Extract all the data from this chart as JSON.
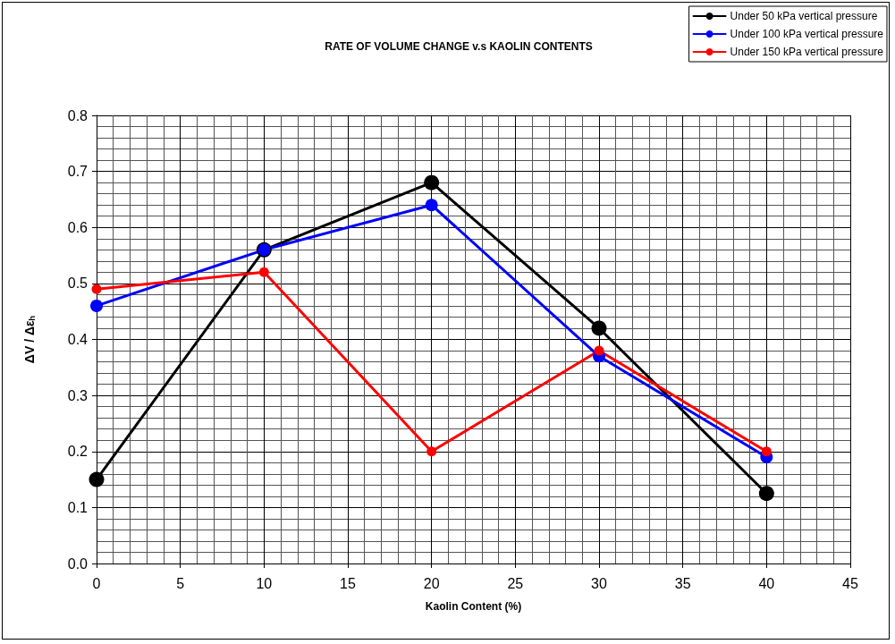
{
  "chart_data": {
    "type": "line",
    "title": "RATE OF VOLUME CHANGE v.s KAOLIN CONTENTS",
    "xlabel": "Kaolin Content (%)",
    "ylabel": "ΔV / Δε$_{h}$",
    "x": [
      0,
      10,
      20,
      30,
      40
    ],
    "series": [
      {
        "name": "Under 50 kPa vertical pressure",
        "color": "#000000",
        "values": [
          0.15,
          0.56,
          0.68,
          0.42,
          0.125
        ]
      },
      {
        "name": "Under 100 kPa vertical pressure",
        "color": "#0000ff",
        "values": [
          0.46,
          0.56,
          0.64,
          0.37,
          0.19
        ]
      },
      {
        "name": "Under 150 kPa vertical pressure",
        "color": "#ff0000",
        "values": [
          0.49,
          0.52,
          0.2,
          0.38,
          0.2
        ]
      }
    ],
    "xlim": [
      0,
      45
    ],
    "xticks": [
      0,
      5,
      10,
      15,
      20,
      25,
      30,
      35,
      40,
      45
    ],
    "ylim": [
      0,
      0.8
    ],
    "yticks": [
      {
        "value": 0,
        "label": "0.0"
      },
      0.1,
      0.2,
      0.3,
      0.4,
      0.5,
      0.6,
      0.7,
      0.8
    ],
    "grid": true,
    "legend": "top right",
    "marker": "circle",
    "line_style": "solid"
  }
}
